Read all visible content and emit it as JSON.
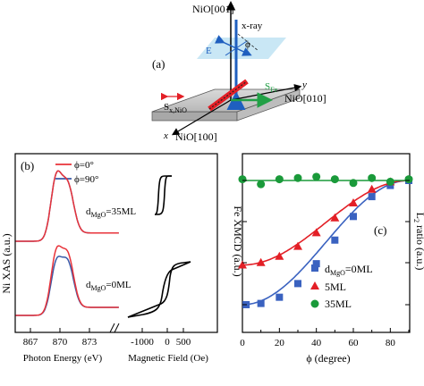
{
  "figure": {
    "panel_a": {
      "label": "(a)",
      "nio001": "NiO[001]",
      "xray": "x-ray",
      "E": "E",
      "phi": "ϕ",
      "sfe": "S",
      "sfe_sub": "Fe",
      "sx": "S",
      "sx_sub": "x,NiO",
      "y": "y",
      "nio010": "NiO[010]",
      "x": "x",
      "nio100": "NiO[100]"
    },
    "panel_b": {
      "label": "(b)",
      "legend": [
        "ϕ=0°",
        "ϕ=90°"
      ],
      "ann_top_main": "d",
      "ann_top_sub": "MgO",
      "ann_top_rest": "=35ML",
      "ann_bot_main": "d",
      "ann_bot_sub": "MgO",
      "ann_bot_rest": "=0ML",
      "ylabel": "Ni XAS (a.u.)",
      "xlabel_left": "Photon Energy (eV)",
      "xlabel_right": "Magnetic Field (Oe)",
      "ticks_energy": [
        "867",
        "870",
        "873"
      ],
      "ticks_field": [
        "-1000",
        "0",
        "500"
      ],
      "colors": {
        "phi0": "#e8333a",
        "phi90": "#3a5aa8"
      }
    },
    "panel_c": {
      "label": "(c)",
      "ylabel_left": "Fe XMCD (a.u.)",
      "ylabel_right": "L",
      "ylabel_right_sub": "2",
      "ylabel_right_rest": " ratio (a.u.)",
      "xlabel": "ϕ (degree)",
      "legend": [
        {
          "main": "d",
          "sub": "MgO",
          "rest": "=0ML"
        },
        {
          "main": "5ML",
          "sub": "",
          "rest": ""
        },
        {
          "main": "35ML",
          "sub": "",
          "rest": ""
        }
      ]
    }
  },
  "chart_data": [
    {
      "type": "line",
      "panel": "(b) left",
      "title": "",
      "xlabel": "Photon Energy (eV)",
      "ylabel": "Ni XAS (a.u.)",
      "xlim": [
        865,
        876
      ],
      "series_names": [
        "ϕ=0°",
        "ϕ=90°"
      ],
      "peaks_eV": [
        869.6,
        870.8
      ],
      "note_rows": [
        "d_MgO=35ML",
        "d_MgO=0ML"
      ]
    },
    {
      "type": "line",
      "panel": "(b) right",
      "xlabel": "Magnetic Field (Oe)",
      "xlim": [
        -1200,
        800
      ],
      "hysteresis": [
        {
          "row": "35ML",
          "coercive_field": 100
        },
        {
          "row": "0ML",
          "coercive_field": 300
        }
      ]
    },
    {
      "type": "scatter",
      "panel": "(c)",
      "xlabel": "ϕ (degree)",
      "ylabel": "Fe XMCD (a.u.)",
      "xlim": [
        0,
        90
      ],
      "xticks": [
        0,
        20,
        40,
        60,
        80
      ],
      "legend_placement": "bottom-right",
      "series": [
        {
          "name": "d_MgO=0ML",
          "marker": "square",
          "color": "#3a62c0",
          "x": [
            2,
            10,
            20,
            30,
            40,
            50,
            60,
            70,
            80,
            90
          ],
          "y": [
            0.0,
            0.01,
            0.06,
            0.17,
            0.33,
            0.52,
            0.71,
            0.87,
            0.96,
            1.0
          ]
        },
        {
          "name": "5ML",
          "marker": "triangle",
          "color": "#e31f26",
          "x": [
            0,
            10,
            20,
            30,
            40,
            50,
            60,
            70,
            80
          ],
          "y": [
            0.32,
            0.34,
            0.39,
            0.47,
            0.58,
            0.7,
            0.82,
            0.93,
            0.99
          ]
        },
        {
          "name": "35ML",
          "marker": "circle",
          "color": "#1a9a3a",
          "x": [
            0,
            10,
            20,
            30,
            40,
            50,
            60,
            70,
            80,
            90
          ],
          "y": [
            1.01,
            0.97,
            1.01,
            1.02,
            1.03,
            1.01,
            0.98,
            1.02,
            0.99,
            1.01
          ]
        }
      ]
    }
  ]
}
